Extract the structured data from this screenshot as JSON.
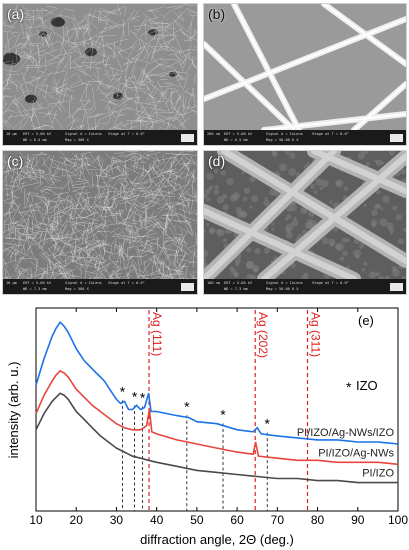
{
  "panels": [
    {
      "label": "(a)",
      "meta": {
        "eht": "EHT = 5.00 kV",
        "wd": "WD = 6.5 mm",
        "signal": "Signal A = InLens",
        "mag": "Mag = 500 X",
        "stage": "Stage at T = 0.0°",
        "scale": "10 µm"
      }
    },
    {
      "label": "(b)",
      "meta": {
        "eht": "EHT = 5.00 kV",
        "wd": "WD = 6.5 mm",
        "signal": "Signal A = InLens",
        "mag": "Mag = 50.00 K X",
        "stage": "Stage at T = 0.0°",
        "scale": "200 nm"
      }
    },
    {
      "label": "(c)",
      "meta": {
        "eht": "EHT = 5.00 kV",
        "wd": "WD = 7.3 mm",
        "signal": "Signal A = InLens",
        "mag": "Mag = 500 X",
        "stage": "Stage at T = 0.0°",
        "scale": "10 µm"
      }
    },
    {
      "label": "(d)",
      "meta": {
        "eht": "EHT = 5.00 kV",
        "wd": "WD = 7.3 mm",
        "signal": "Signal A = InLens",
        "mag": "Mag = 50.00 K X",
        "stage": "Stage at T = 0.0°",
        "scale": "100 nm"
      }
    }
  ],
  "chart_data": {
    "type": "line",
    "panel_label": "(e)",
    "xlabel": "diffraction angle, 2Θ (deg.)",
    "ylabel": "intensity (arb. u.)",
    "xlim": [
      10,
      100
    ],
    "xticks": [
      10,
      20,
      30,
      40,
      50,
      60,
      70,
      80,
      90,
      100
    ],
    "grid": false,
    "series": [
      {
        "name": "PI/IZO/Ag-NWs/IZO",
        "color": "#1a73e8",
        "points": [
          [
            10,
            0.62
          ],
          [
            12,
            0.75
          ],
          [
            14,
            0.86
          ],
          [
            15,
            0.9
          ],
          [
            16,
            0.93
          ],
          [
            17,
            0.91
          ],
          [
            18,
            0.88
          ],
          [
            19,
            0.84
          ],
          [
            20,
            0.8
          ],
          [
            21,
            0.77
          ],
          [
            22,
            0.74
          ],
          [
            23,
            0.72
          ],
          [
            24,
            0.7
          ],
          [
            25,
            0.68
          ],
          [
            26,
            0.66
          ],
          [
            27,
            0.64
          ],
          [
            28,
            0.61
          ],
          [
            29,
            0.58
          ],
          [
            30,
            0.55
          ],
          [
            31,
            0.53
          ],
          [
            32,
            0.54
          ],
          [
            33,
            0.5
          ],
          [
            34,
            0.5
          ],
          [
            35,
            0.52
          ],
          [
            36,
            0.5
          ],
          [
            37,
            0.51
          ],
          [
            38,
            0.58
          ],
          [
            38.6,
            0.49
          ],
          [
            40,
            0.49
          ],
          [
            45,
            0.47
          ],
          [
            48,
            0.46
          ],
          [
            50,
            0.44
          ],
          [
            55,
            0.43
          ],
          [
            60,
            0.4
          ],
          [
            64,
            0.39
          ],
          [
            65,
            0.41
          ],
          [
            66,
            0.38
          ],
          [
            70,
            0.37
          ],
          [
            75,
            0.36
          ],
          [
            80,
            0.35
          ],
          [
            85,
            0.35
          ],
          [
            90,
            0.34
          ],
          [
            95,
            0.34
          ],
          [
            100,
            0.33
          ]
        ]
      },
      {
        "name": "PI/IZO/Ag-NWs",
        "color": "#e8453c",
        "points": [
          [
            10,
            0.48
          ],
          [
            12,
            0.57
          ],
          [
            14,
            0.64
          ],
          [
            15,
            0.67
          ],
          [
            16,
            0.69
          ],
          [
            17,
            0.68
          ],
          [
            18,
            0.66
          ],
          [
            19,
            0.63
          ],
          [
            20,
            0.6
          ],
          [
            22,
            0.56
          ],
          [
            24,
            0.52
          ],
          [
            26,
            0.49
          ],
          [
            28,
            0.46
          ],
          [
            30,
            0.43
          ],
          [
            32,
            0.41
          ],
          [
            34,
            0.4
          ],
          [
            36,
            0.4
          ],
          [
            37.5,
            0.42
          ],
          [
            38.2,
            0.5
          ],
          [
            38.8,
            0.39
          ],
          [
            40,
            0.38
          ],
          [
            45,
            0.35
          ],
          [
            50,
            0.33
          ],
          [
            55,
            0.31
          ],
          [
            60,
            0.29
          ],
          [
            64,
            0.28
          ],
          [
            64.6,
            0.34
          ],
          [
            65.3,
            0.27
          ],
          [
            70,
            0.26
          ],
          [
            75,
            0.25
          ],
          [
            80,
            0.25
          ],
          [
            85,
            0.24
          ],
          [
            90,
            0.24
          ],
          [
            95,
            0.24
          ],
          [
            100,
            0.23
          ]
        ]
      },
      {
        "name": "PI/IZO",
        "color": "#4a4a4a",
        "points": [
          [
            10,
            0.4
          ],
          [
            12,
            0.48
          ],
          [
            14,
            0.54
          ],
          [
            15,
            0.56
          ],
          [
            16,
            0.58
          ],
          [
            17,
            0.57
          ],
          [
            18,
            0.55
          ],
          [
            19,
            0.52
          ],
          [
            20,
            0.49
          ],
          [
            22,
            0.45
          ],
          [
            24,
            0.41
          ],
          [
            26,
            0.37
          ],
          [
            28,
            0.34
          ],
          [
            30,
            0.31
          ],
          [
            32,
            0.29
          ],
          [
            34,
            0.27
          ],
          [
            36,
            0.26
          ],
          [
            38,
            0.25
          ],
          [
            40,
            0.24
          ],
          [
            45,
            0.22
          ],
          [
            50,
            0.2
          ],
          [
            55,
            0.19
          ],
          [
            60,
            0.18
          ],
          [
            65,
            0.17
          ],
          [
            70,
            0.16
          ],
          [
            75,
            0.16
          ],
          [
            80,
            0.15
          ],
          [
            85,
            0.15
          ],
          [
            90,
            0.14
          ],
          [
            95,
            0.14
          ],
          [
            100,
            0.14
          ]
        ]
      }
    ],
    "reference_lines": [
      {
        "label": "Ag (111)",
        "x": 38.1,
        "color": "#e02020"
      },
      {
        "label": "Ag (202)",
        "x": 64.5,
        "color": "#e02020"
      },
      {
        "label": "Ag (311)",
        "x": 77.5,
        "color": "#e02020"
      }
    ],
    "izo_markers": [
      {
        "x": 31.5,
        "symbol": "*"
      },
      {
        "x": 34.5,
        "symbol": "*"
      },
      {
        "x": 36.5,
        "symbol": "*"
      },
      {
        "x": 47.5,
        "symbol": "*"
      },
      {
        "x": 56.5,
        "symbol": "*"
      },
      {
        "x": 67.5,
        "symbol": "*"
      }
    ],
    "legend": {
      "symbol": "*",
      "text": "IZO"
    }
  }
}
